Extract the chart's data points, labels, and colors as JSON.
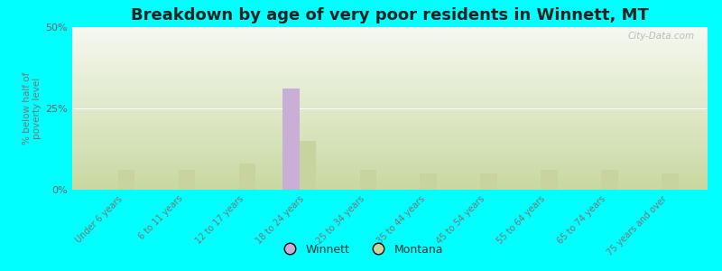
{
  "title": "Breakdown by age of very poor residents in Winnett, MT",
  "ylabel": "% below half of\npoverty level",
  "categories": [
    "Under 6 years",
    "6 to 11 years",
    "12 to 17 years",
    "18 to 24 years",
    "25 to 34 years",
    "35 to 44 years",
    "45 to 54 years",
    "55 to 64 years",
    "65 to 74 years",
    "75 years and over"
  ],
  "winnett_values": [
    0,
    0,
    0,
    31,
    0,
    0,
    0,
    0,
    0,
    0
  ],
  "montana_values": [
    6,
    6,
    8,
    15,
    6,
    5,
    5,
    6,
    6,
    5
  ],
  "winnett_color": "#c9aed6",
  "montana_color": "#c8d4a0",
  "background_color": "#00ffff",
  "plot_bg_top": "#f5f8f0",
  "plot_bg_bottom": "#c8d8a0",
  "ylim": [
    0,
    50
  ],
  "yticks": [
    0,
    25,
    50
  ],
  "ytick_labels": [
    "0%",
    "25%",
    "50%"
  ],
  "bar_width": 0.28,
  "title_fontsize": 13,
  "watermark": "City-Data.com"
}
